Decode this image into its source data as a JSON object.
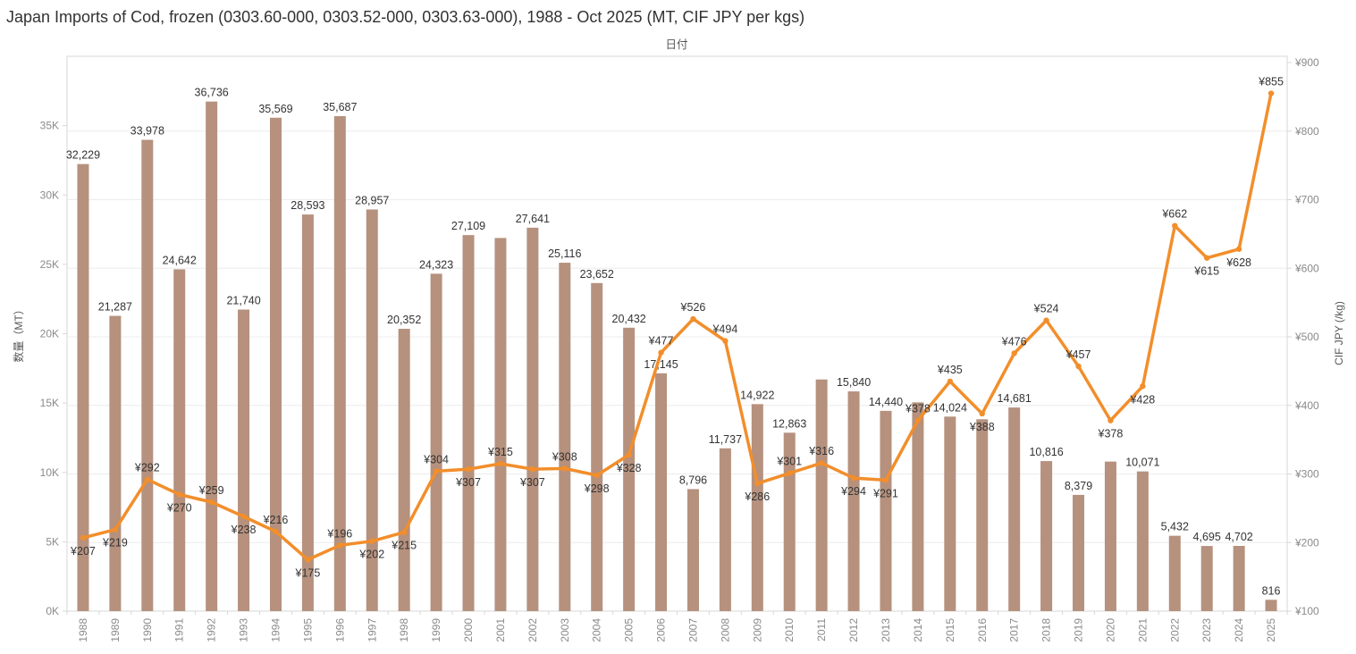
{
  "header": {
    "title": "Japan Imports of Cod, frozen (0303.60-000, 0303.52-000, 0303.63-000), 1988 - Oct 2025 (MT, CIF JPY per kgs)"
  },
  "axes": {
    "x_title": "日付",
    "y_left_title": "数量（MT）",
    "y_right_title": "CIF JPY (/kg)",
    "y_left_ticks": [
      "0K",
      "5K",
      "10K",
      "15K",
      "20K",
      "25K",
      "30K",
      "35K"
    ],
    "y_right_ticks": [
      "¥100",
      "¥200",
      "¥300",
      "¥400",
      "¥500",
      "¥600",
      "¥700",
      "¥800",
      "¥900"
    ]
  },
  "colors": {
    "bar": "#b5917e",
    "line": "#f28e2b",
    "grid": "#ececec",
    "frame": "#d7d7d7",
    "tick_text": "#8a8a8a",
    "data_label": "#333333",
    "axis_title": "#575757",
    "title": "#323232"
  },
  "chart_data": {
    "type": "bar",
    "subtype": "combo-bar-line-dual-axis",
    "title": "Japan Imports of Cod, frozen (0303.60-000, 0303.52-000, 0303.63-000), 1988 - Oct 2025 (MT, CIF JPY per kgs)",
    "xlabel": "日付",
    "categories": [
      1988,
      1989,
      1990,
      1991,
      1992,
      1993,
      1994,
      1995,
      1996,
      1997,
      1998,
      1999,
      2000,
      2001,
      2002,
      2003,
      2004,
      2005,
      2006,
      2007,
      2008,
      2009,
      2010,
      2011,
      2012,
      2013,
      2014,
      2015,
      2016,
      2017,
      2018,
      2019,
      2020,
      2021,
      2022,
      2023,
      2024,
      2025
    ],
    "series": [
      {
        "name": "数量（MT）",
        "type": "bar",
        "axis": "left",
        "values": [
          32229,
          21287,
          33978,
          24642,
          36736,
          21740,
          35569,
          28593,
          35687,
          28957,
          20352,
          24323,
          27109,
          26900,
          27641,
          25116,
          23652,
          20432,
          17145,
          8796,
          11737,
          14922,
          12863,
          16700,
          15840,
          14440,
          15050,
          14024,
          13830,
          14681,
          10816,
          8379,
          10780,
          10071,
          5432,
          4695,
          4702,
          816
        ],
        "labels": [
          "32,229",
          "21,287",
          "33,978",
          "24,642",
          "36,736",
          "21,740",
          "35,569",
          "28,593",
          "35,687",
          "28,957",
          "20,352",
          "24,323",
          "27,109",
          null,
          "27,641",
          "25,116",
          "23,652",
          "20,432",
          "17,145",
          "8,796",
          "11,737",
          "14,922",
          "12,863",
          null,
          "15,840",
          "14,440",
          null,
          "14,024",
          null,
          "14,681",
          "10,816",
          "8,379",
          null,
          "10,071",
          "5,432",
          "4,695",
          "4,702",
          "816"
        ]
      },
      {
        "name": "CIF JPY (/kg)",
        "type": "line",
        "axis": "right",
        "label_prefix": "¥",
        "values": [
          207,
          219,
          292,
          270,
          259,
          238,
          216,
          175,
          196,
          202,
          215,
          304,
          307,
          315,
          307,
          308,
          298,
          328,
          477,
          526,
          494,
          286,
          301,
          316,
          294,
          291,
          378,
          435,
          388,
          476,
          524,
          457,
          378,
          428,
          662,
          615,
          628,
          855
        ],
        "label_positions": [
          "b",
          "b",
          "a",
          "b",
          "a",
          "b",
          "a",
          "b",
          "a",
          "b",
          "b",
          "a",
          "b",
          "a",
          "b",
          "a",
          "b",
          "b",
          "a",
          "a",
          "a",
          "b",
          "a",
          "a",
          "b",
          "b",
          "a",
          "a",
          "b",
          "a",
          "a",
          "a",
          "b",
          "b",
          "a",
          "b",
          "b",
          "a"
        ]
      }
    ],
    "y_left": {
      "min": 0,
      "max": 40000,
      "tick_step": 5000,
      "tick_top": 35000
    },
    "y_right": {
      "min": 100,
      "max": 900,
      "tick_step": 100
    },
    "grid": "horizontal, aligned to right axis",
    "legend": "none"
  }
}
